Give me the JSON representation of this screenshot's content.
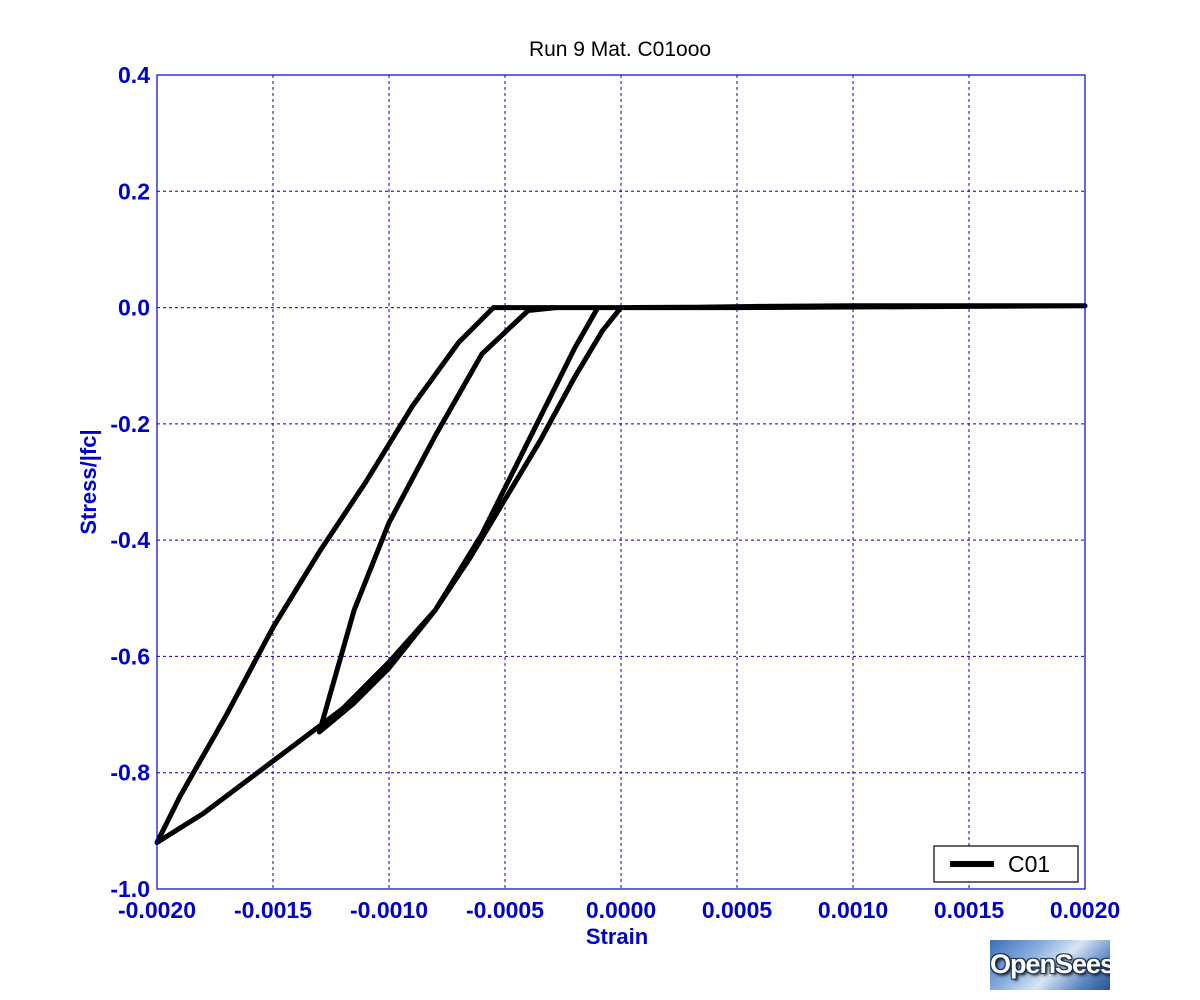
{
  "chart_data": {
    "type": "line",
    "title": "Run 9    Mat. C01ooo",
    "xlabel": "Strain",
    "ylabel": "Stress/|fc|",
    "xlim": [
      -0.002,
      0.002
    ],
    "ylim": [
      -1.0,
      0.4
    ],
    "x_ticks": [
      -0.002,
      -0.0015,
      -0.001,
      -0.0005,
      0.0,
      0.0005,
      0.001,
      0.0015,
      0.002
    ],
    "x_tick_labels": [
      "-0.0020",
      "-0.0015",
      "-0.0010",
      "-0.0005",
      "0.0000",
      "0.0005",
      "0.0010",
      "0.0015",
      "0.0020"
    ],
    "y_ticks": [
      0.4,
      0.2,
      0.0,
      -0.2,
      -0.4,
      -0.6,
      -0.8,
      -1.0
    ],
    "y_tick_labels": [
      "0.4",
      "0.2",
      "0.0",
      "-0.2",
      "-0.4",
      "-0.6",
      "-0.8",
      "-1.0"
    ],
    "grid": true,
    "legend_position": "bottom-right",
    "colors": {
      "axis_text": "#0000cc",
      "grid": "#0000cc",
      "line": "#000000"
    },
    "series": [
      {
        "name": "C01",
        "x": [
          0.0,
          -8e-05,
          -0.0002,
          -0.00035,
          -0.0005,
          -0.00065,
          -0.0008,
          -0.001,
          -0.00115,
          -0.0013,
          -0.00115,
          -0.001,
          -0.0008,
          -0.0006,
          -0.0004,
          -0.00028,
          -0.00025,
          -0.0002,
          -0.00015,
          -0.00012,
          -0.0001,
          -0.0002,
          -0.0003,
          -0.00045,
          -0.0006,
          -0.0008,
          -0.001,
          -0.0012,
          -0.0014,
          -0.0016,
          -0.0018,
          -0.002,
          -0.0019,
          -0.0017,
          -0.0015,
          -0.0013,
          -0.0011,
          -0.0009,
          -0.0007,
          -0.00055,
          -0.00048,
          -0.00045,
          -0.0004,
          -0.0003,
          -0.0002,
          0.0,
          0.0005,
          0.001,
          0.0015,
          0.002,
          0.0015,
          0.001,
          0.0005,
          0.0,
          0.0002,
          0.0006,
          0.001,
          0.0015,
          0.002
        ],
        "y": [
          0.0,
          -0.04,
          -0.12,
          -0.23,
          -0.33,
          -0.43,
          -0.52,
          -0.62,
          -0.68,
          -0.73,
          -0.52,
          -0.37,
          -0.22,
          -0.08,
          -0.005,
          0.0,
          0.0,
          0.0,
          0.0,
          0.0,
          0.0,
          -0.07,
          -0.15,
          -0.27,
          -0.39,
          -0.52,
          -0.61,
          -0.69,
          -0.75,
          -0.81,
          -0.87,
          -0.92,
          -0.84,
          -0.7,
          -0.55,
          -0.42,
          -0.3,
          -0.17,
          -0.06,
          0.0,
          0.0,
          0.0,
          0.0,
          0.0,
          0.0,
          0.0,
          0.001,
          0.002,
          0.003,
          0.003,
          0.002,
          0.001,
          0.0,
          0.0,
          0.0,
          0.002,
          0.003,
          0.003,
          0.003
        ]
      }
    ]
  },
  "logo": {
    "text": "OpenSees"
  }
}
